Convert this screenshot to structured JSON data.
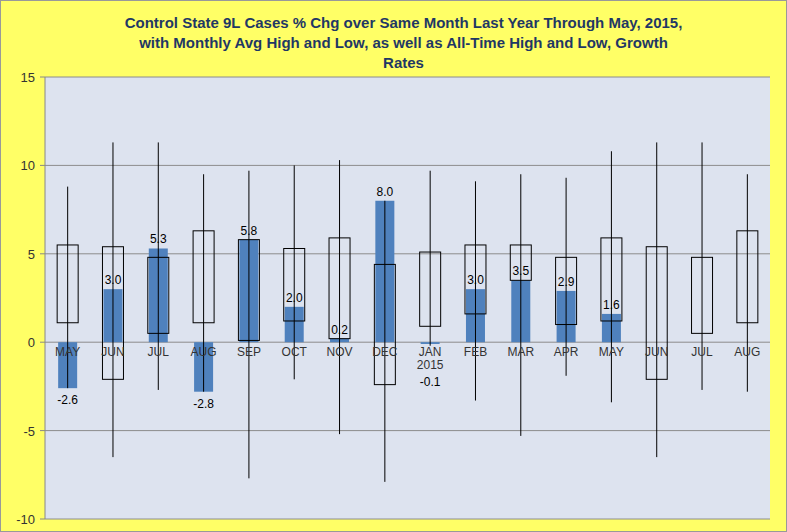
{
  "chart_data": {
    "type": "bar",
    "title": "Control State 9L Cases % Chg over Same Month Last Year Through May, 2015,\nwith Monthly Avg High and Low, as well as All-Time High and Low,  Growth\nRates",
    "categories": [
      "MAY",
      "JUN",
      "JUL",
      "AUG",
      "SEP",
      "OCT",
      "NOV",
      "DEC",
      "JAN\n2015",
      "FEB",
      "MAR",
      "APR",
      "MAY",
      "JUN",
      "JUL",
      "AUG"
    ],
    "values": [
      -2.6,
      3.0,
      5.3,
      -2.8,
      5.8,
      2.0,
      0.2,
      8.0,
      -0.1,
      3.0,
      3.5,
      2.9,
      1.6,
      null,
      null,
      null
    ],
    "value_labels": [
      "-2.6",
      "3.0",
      "5.3",
      "-2.8",
      "5.8",
      "2.0",
      "0.2",
      "8.0",
      "-0.1",
      "3.0",
      "3.5",
      "2.9",
      "1.6",
      null,
      null,
      null
    ],
    "avg_high": [
      5.5,
      5.4,
      4.8,
      6.3,
      5.8,
      5.3,
      5.9,
      4.4,
      5.1,
      5.5,
      5.5,
      4.8,
      5.9,
      5.4,
      4.8,
      6.3
    ],
    "avg_low": [
      1.1,
      -2.1,
      0.5,
      1.1,
      0.1,
      1.2,
      0.2,
      -2.4,
      0.9,
      1.6,
      3.5,
      1.0,
      1.2,
      -2.1,
      0.5,
      1.1
    ],
    "all_time_high": [
      8.8,
      11.3,
      11.3,
      9.5,
      9.7,
      10.0,
      10.3,
      8.0,
      9.7,
      9.1,
      9.5,
      9.3,
      10.8,
      11.3,
      11.3,
      9.5
    ],
    "all_time_low": [
      -2.6,
      -6.5,
      -2.7,
      -2.8,
      -7.7,
      -2.1,
      -5.2,
      -7.9,
      -0.2,
      -3.3,
      -5.3,
      -1.9,
      -3.4,
      -6.5,
      -2.7,
      -2.8
    ],
    "color": "#4f81bd",
    "ylim": [
      -10,
      15
    ],
    "yticks": [
      -10,
      -5,
      0,
      5,
      10,
      15
    ],
    "grid": true,
    "data_labels": true
  }
}
